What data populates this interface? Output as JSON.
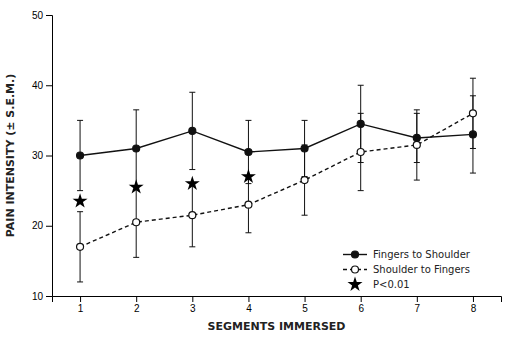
{
  "chart_data": {
    "type": "line",
    "x": [
      1,
      2,
      3,
      4,
      5,
      6,
      7,
      8
    ],
    "series": [
      {
        "name": "Fingers to Shoulder",
        "color": "#111111",
        "marker": "filled-circle",
        "line_style": "solid",
        "values": [
          30.0,
          31.0,
          33.5,
          30.5,
          31.0,
          34.5,
          32.5,
          33.0
        ],
        "errors": [
          5.0,
          5.5,
          5.5,
          4.5,
          4.0,
          5.5,
          3.5,
          5.5
        ]
      },
      {
        "name": "Shoulder to Fingers",
        "color": "#111111",
        "marker": "open-circle",
        "line_style": "dashed",
        "values": [
          17.0,
          20.5,
          21.5,
          23.0,
          26.5,
          30.5,
          31.5,
          36.0
        ],
        "errors": [
          5.0,
          5.0,
          4.5,
          4.0,
          5.0,
          5.5,
          5.0,
          5.0
        ]
      },
      {
        "name": " P<0.01",
        "type": "scatter",
        "color": "#000000",
        "marker": "star",
        "x": [
          1,
          2,
          3,
          4
        ],
        "values": [
          23.5,
          25.5,
          26.0,
          27.0
        ]
      }
    ],
    "xlabel": "SEGMENTS IMMERSED",
    "ylabel": "PAIN INTENSITY (± S.E.M.)",
    "xlim": [
      0.5,
      8.5
    ],
    "ylim": [
      10,
      50
    ],
    "xticks": [
      1,
      2,
      3,
      4,
      5,
      6,
      7,
      8
    ],
    "yticks": [
      10,
      20,
      30,
      40,
      50
    ],
    "grid": false,
    "legend": "lower right"
  }
}
